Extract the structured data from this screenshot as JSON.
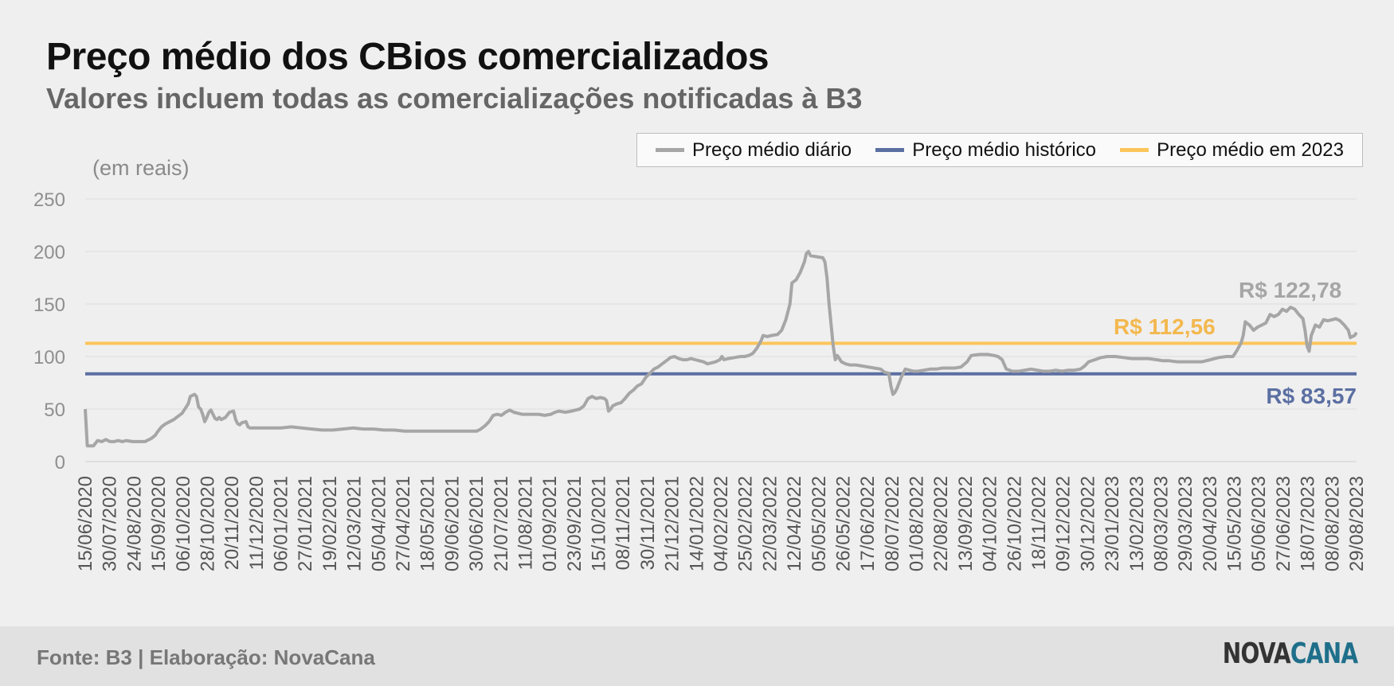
{
  "header": {
    "title": "Preço médio dos CBios comercializados",
    "subtitle": "Valores incluem todas as comercializações notificadas à B3",
    "unit_label": "(em reais)"
  },
  "footer": {
    "source": "Fonte: B3 | Elaboração: NovaCana",
    "logo_part1": "NOVA",
    "logo_part2": "CANA"
  },
  "colors": {
    "daily": "#a6a6a6",
    "historic": "#5b6fa2",
    "avg2023": "#fcc55a",
    "avg2023_label": "#f3b84f",
    "grid": "#dcdcdc",
    "tick_text": "#8f8f8f"
  },
  "chart_data": {
    "type": "line",
    "title": "Preço médio dos CBios comercializados",
    "ylabel": "(em reais)",
    "ylim": [
      0,
      250
    ],
    "yticks": [
      0,
      50,
      100,
      150,
      200,
      250
    ],
    "grid": true,
    "legend_position": "top-right",
    "x_tick_labels": [
      "15/06/2020",
      "30/07/2020",
      "24/08/2020",
      "15/09/2020",
      "06/10/2020",
      "28/10/2020",
      "20/11/2020",
      "11/12/2020",
      "06/01/2021",
      "27/01/2021",
      "19/02/2021",
      "12/03/2021",
      "05/04/2021",
      "27/04/2021",
      "18/05/2021",
      "09/06/2021",
      "30/06/2021",
      "21/07/2021",
      "11/08/2021",
      "01/09/2021",
      "23/09/2021",
      "15/10/2021",
      "08/11/2021",
      "30/11/2021",
      "21/12/2021",
      "14/01/2022",
      "04/02/2022",
      "25/02/2022",
      "22/03/2022",
      "12/04/2022",
      "05/05/2022",
      "26/05/2022",
      "17/06/2022",
      "08/07/2022",
      "01/08/2022",
      "22/08/2022",
      "13/09/2022",
      "04/10/2022",
      "26/10/2022",
      "18/11/2022",
      "09/12/2022",
      "30/12/2022",
      "23/01/2023",
      "13/02/2023",
      "08/03/2023",
      "29/03/2023",
      "20/04/2023",
      "15/05/2023",
      "05/06/2023",
      "27/06/2023",
      "18/07/2023",
      "08/08/2023",
      "29/08/2023"
    ],
    "series": [
      {
        "name": "Preço médio diário",
        "kind": "line",
        "points": [
          [
            0,
            50
          ],
          [
            0.1,
            15
          ],
          [
            0.4,
            15
          ],
          [
            0.6,
            20
          ],
          [
            0.8,
            19
          ],
          [
            1.0,
            21
          ],
          [
            1.2,
            19
          ],
          [
            1.4,
            19
          ],
          [
            1.6,
            20
          ],
          [
            1.8,
            19
          ],
          [
            2.0,
            20
          ],
          [
            2.3,
            19
          ],
          [
            2.6,
            19
          ],
          [
            2.9,
            19
          ],
          [
            3.0,
            20
          ],
          [
            3.2,
            22
          ],
          [
            3.4,
            25
          ],
          [
            3.5,
            28
          ],
          [
            3.7,
            33
          ],
          [
            3.9,
            36
          ],
          [
            4.1,
            38
          ],
          [
            4.3,
            40
          ],
          [
            4.5,
            43
          ],
          [
            4.7,
            46
          ],
          [
            4.9,
            52
          ],
          [
            5.0,
            55
          ],
          [
            5.1,
            62
          ],
          [
            5.3,
            64
          ],
          [
            5.4,
            62
          ],
          [
            5.5,
            52
          ],
          [
            5.6,
            50
          ],
          [
            5.7,
            45
          ],
          [
            5.8,
            38
          ],
          [
            5.9,
            42
          ],
          [
            6.0,
            47
          ],
          [
            6.1,
            49
          ],
          [
            6.2,
            45
          ],
          [
            6.3,
            41
          ],
          [
            6.4,
            40
          ],
          [
            6.5,
            42
          ],
          [
            6.6,
            40
          ],
          [
            6.8,
            42
          ],
          [
            7.0,
            47
          ],
          [
            7.2,
            48
          ],
          [
            7.3,
            40
          ],
          [
            7.4,
            36
          ],
          [
            7.5,
            35
          ],
          [
            7.6,
            37
          ],
          [
            7.8,
            38
          ],
          [
            7.9,
            33
          ],
          [
            8.0,
            32
          ],
          [
            8.5,
            32
          ],
          [
            9.0,
            32
          ],
          [
            9.5,
            32
          ],
          [
            10.0,
            33
          ],
          [
            10.5,
            32
          ],
          [
            11.0,
            31
          ],
          [
            11.5,
            30
          ],
          [
            12.0,
            30
          ],
          [
            12.5,
            31
          ],
          [
            13.0,
            32
          ],
          [
            13.5,
            31
          ],
          [
            14.0,
            31
          ],
          [
            14.5,
            30
          ],
          [
            15.0,
            30
          ],
          [
            15.5,
            29
          ],
          [
            16.0,
            29
          ],
          [
            16.5,
            29
          ],
          [
            17.0,
            29
          ],
          [
            17.5,
            29
          ],
          [
            18.0,
            29
          ],
          [
            18.5,
            29
          ],
          [
            19.0,
            29
          ],
          [
            19.2,
            31
          ],
          [
            19.4,
            34
          ],
          [
            19.6,
            38
          ],
          [
            19.8,
            44
          ],
          [
            20.0,
            45
          ],
          [
            20.2,
            44
          ],
          [
            20.4,
            47
          ],
          [
            20.6,
            49
          ],
          [
            20.8,
            47
          ],
          [
            21.0,
            46
          ],
          [
            21.2,
            45
          ],
          [
            21.5,
            45
          ],
          [
            22.0,
            45
          ],
          [
            22.3,
            44
          ],
          [
            22.6,
            45
          ],
          [
            22.8,
            47
          ],
          [
            23.0,
            48
          ],
          [
            23.3,
            47
          ],
          [
            23.6,
            48
          ],
          [
            24.0,
            50
          ],
          [
            24.2,
            53
          ],
          [
            24.4,
            60
          ],
          [
            24.6,
            62
          ],
          [
            24.8,
            60
          ],
          [
            25.0,
            61
          ],
          [
            25.2,
            60
          ],
          [
            25.3,
            58
          ],
          [
            25.4,
            48
          ],
          [
            25.5,
            50
          ],
          [
            25.6,
            53
          ],
          [
            25.8,
            55
          ],
          [
            26.0,
            56
          ],
          [
            26.2,
            60
          ],
          [
            26.4,
            65
          ],
          [
            26.6,
            68
          ],
          [
            26.8,
            72
          ],
          [
            27.0,
            74
          ],
          [
            27.2,
            80
          ],
          [
            27.4,
            84
          ],
          [
            27.6,
            88
          ],
          [
            27.8,
            90
          ],
          [
            28.0,
            93
          ],
          [
            28.2,
            96
          ],
          [
            28.4,
            99
          ],
          [
            28.6,
            100
          ],
          [
            28.8,
            98
          ],
          [
            29.0,
            97
          ],
          [
            29.2,
            97
          ],
          [
            29.4,
            98
          ],
          [
            29.6,
            97
          ],
          [
            29.8,
            96
          ],
          [
            30.0,
            95
          ],
          [
            30.2,
            93
          ],
          [
            30.4,
            94
          ],
          [
            30.6,
            95
          ],
          [
            30.8,
            97
          ],
          [
            30.9,
            100
          ],
          [
            31.0,
            97
          ],
          [
            31.2,
            98
          ],
          [
            31.5,
            99
          ],
          [
            31.8,
            100
          ],
          [
            32.0,
            100
          ],
          [
            32.2,
            101
          ],
          [
            32.4,
            103
          ],
          [
            32.6,
            108
          ],
          [
            32.8,
            115
          ],
          [
            32.9,
            120
          ],
          [
            33.1,
            119
          ],
          [
            33.3,
            120
          ],
          [
            33.6,
            121
          ],
          [
            33.8,
            125
          ],
          [
            34.0,
            135
          ],
          [
            34.2,
            150
          ],
          [
            34.3,
            170
          ],
          [
            34.5,
            173
          ],
          [
            34.7,
            180
          ],
          [
            34.9,
            190
          ],
          [
            35.0,
            198
          ],
          [
            35.1,
            200
          ],
          [
            35.2,
            196
          ],
          [
            35.5,
            195
          ],
          [
            35.8,
            194
          ],
          [
            35.9,
            190
          ],
          [
            36.0,
            175
          ],
          [
            36.1,
            150
          ],
          [
            36.2,
            130
          ],
          [
            36.3,
            110
          ],
          [
            36.4,
            97
          ],
          [
            36.5,
            101
          ],
          [
            36.6,
            98
          ],
          [
            36.7,
            95
          ],
          [
            36.9,
            93
          ],
          [
            37.1,
            92
          ],
          [
            37.4,
            92
          ],
          [
            37.7,
            91
          ],
          [
            38.0,
            90
          ],
          [
            38.3,
            89
          ],
          [
            38.6,
            88
          ],
          [
            38.8,
            85
          ],
          [
            39.0,
            84
          ],
          [
            39.1,
            72
          ],
          [
            39.2,
            64
          ],
          [
            39.3,
            66
          ],
          [
            39.4,
            70
          ],
          [
            39.6,
            80
          ],
          [
            39.8,
            88
          ],
          [
            40.0,
            87
          ],
          [
            40.2,
            86
          ],
          [
            40.4,
            86
          ],
          [
            40.7,
            87
          ],
          [
            41.0,
            88
          ],
          [
            41.3,
            88
          ],
          [
            41.6,
            89
          ],
          [
            41.9,
            89
          ],
          [
            42.2,
            89
          ],
          [
            42.5,
            90
          ],
          [
            42.8,
            95
          ],
          [
            43.0,
            101
          ],
          [
            43.4,
            102
          ],
          [
            43.8,
            102
          ],
          [
            44.1,
            101
          ],
          [
            44.3,
            100
          ],
          [
            44.5,
            97
          ],
          [
            44.7,
            88
          ],
          [
            45.0,
            86
          ],
          [
            45.3,
            86
          ],
          [
            45.6,
            87
          ],
          [
            45.9,
            88
          ],
          [
            46.2,
            87
          ],
          [
            46.5,
            86
          ],
          [
            46.8,
            86
          ],
          [
            47.1,
            87
          ],
          [
            47.4,
            86
          ],
          [
            47.7,
            87
          ],
          [
            48.0,
            87
          ],
          [
            48.3,
            88
          ],
          [
            48.5,
            91
          ],
          [
            48.7,
            95
          ],
          [
            49.0,
            97
          ],
          [
            49.3,
            99
          ],
          [
            49.6,
            100
          ],
          [
            50.0,
            100
          ],
          [
            50.4,
            99
          ],
          [
            50.8,
            98
          ],
          [
            51.2,
            98
          ],
          [
            51.6,
            98
          ],
          [
            52.0,
            97
          ],
          [
            52.3,
            96
          ],
          [
            52.6,
            96
          ],
          [
            53.0,
            95
          ],
          [
            53.4,
            95
          ],
          [
            53.8,
            95
          ],
          [
            54.2,
            95
          ],
          [
            54.6,
            97
          ],
          [
            55.0,
            99
          ],
          [
            55.4,
            100
          ],
          [
            55.7,
            100
          ],
          [
            55.9,
            106
          ],
          [
            56.1,
            113
          ],
          [
            56.2,
            120
          ],
          [
            56.3,
            133
          ],
          [
            56.5,
            130
          ],
          [
            56.7,
            125
          ],
          [
            56.9,
            128
          ],
          [
            57.1,
            130
          ],
          [
            57.3,
            132
          ],
          [
            57.5,
            140
          ],
          [
            57.7,
            138
          ],
          [
            57.9,
            140
          ],
          [
            58.1,
            145
          ],
          [
            58.3,
            143
          ],
          [
            58.5,
            147
          ],
          [
            58.7,
            145
          ],
          [
            58.9,
            140
          ],
          [
            59.1,
            136
          ],
          [
            59.2,
            125
          ],
          [
            59.3,
            110
          ],
          [
            59.4,
            105
          ],
          [
            59.5,
            120
          ],
          [
            59.7,
            130
          ],
          [
            59.9,
            128
          ],
          [
            60.1,
            135
          ],
          [
            60.3,
            134
          ],
          [
            60.5,
            135
          ],
          [
            60.7,
            136
          ],
          [
            60.9,
            134
          ],
          [
            61.1,
            130
          ],
          [
            61.3,
            125
          ],
          [
            61.4,
            118
          ],
          [
            61.6,
            120
          ],
          [
            61.7,
            122.78
          ]
        ]
      },
      {
        "name": "Preço médio histórico",
        "kind": "hline",
        "value": 83.57
      },
      {
        "name": "Preço médio em 2023",
        "kind": "hline",
        "value": 112.56
      }
    ],
    "x_index_range": [
      0,
      61.7
    ],
    "annotations": [
      {
        "text": "R$ 122,78",
        "series": "Preço médio diário"
      },
      {
        "text": "R$ 112,56",
        "series": "Preço médio em 2023"
      },
      {
        "text": "R$ 83,57",
        "series": "Preço médio histórico"
      }
    ]
  }
}
